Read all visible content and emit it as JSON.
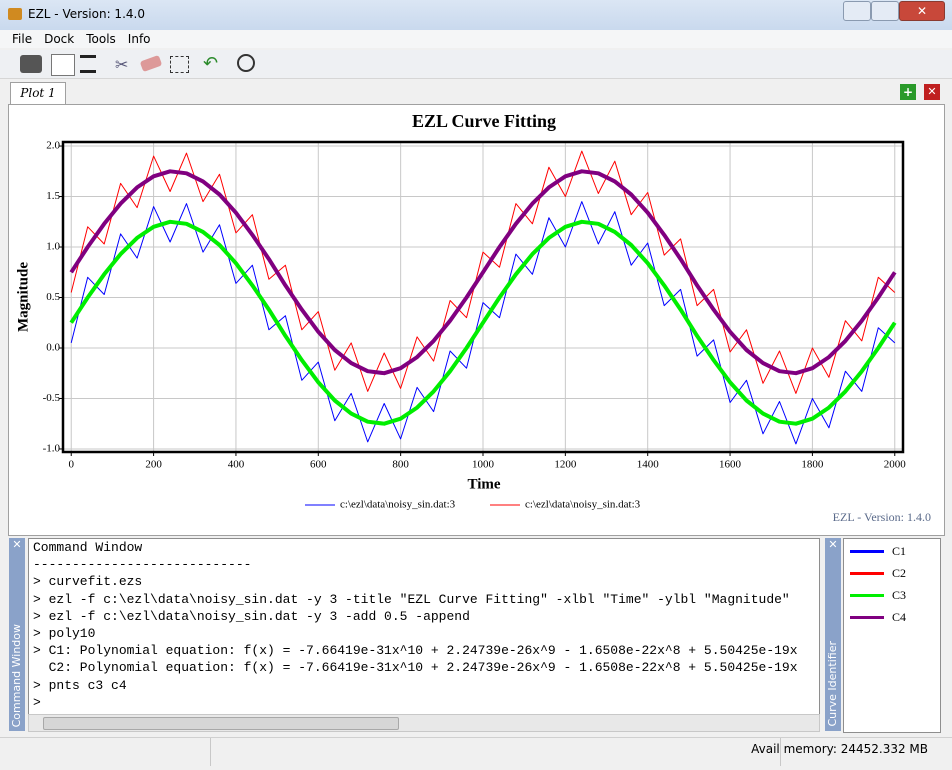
{
  "window": {
    "title": "EZL - Version: 1.4.0",
    "menu": [
      "File",
      "Dock",
      "Tools",
      "Info"
    ],
    "tab": "Plot 1",
    "watermark": "EZL - Version: 1.4.0",
    "command_window": {
      "label": "Command Window",
      "lines": [
        "Command Window",
        "----------------------------",
        "> curvefit.ezs",
        "> ezl -f c:\\ezl\\data\\noisy_sin.dat -y 3 -title \"EZL Curve Fitting\" -xlbl \"Time\" -ylbl \"Magnitude\"",
        "> ezl -f c:\\ezl\\data\\noisy_sin.dat -y 3 -add 0.5 -append",
        "> poly10",
        "> C1: Polynomial equation: f(x) = -7.66419e-31x^10 + 2.24739e-26x^9 - 1.6508e-22x^8 + 5.50425e-19x",
        "  C2: Polynomial equation: f(x) = -7.66419e-31x^10 + 2.24739e-26x^9 - 1.6508e-22x^8 + 5.50425e-19x",
        "> pnts c3 c4",
        ">"
      ]
    },
    "curve_identifier": {
      "label": "Curve Identifier"
    },
    "status": "Avail memory: 24452.332 MB"
  },
  "chart_data": {
    "type": "line",
    "title": "EZL Curve Fitting",
    "x_label": "Time",
    "y_label": "Magnitude",
    "x": [
      0,
      40,
      80,
      120,
      160,
      200,
      240,
      280,
      320,
      360,
      400,
      440,
      480,
      520,
      560,
      600,
      640,
      680,
      720,
      760,
      800,
      840,
      880,
      920,
      960,
      1000,
      1040,
      1080,
      1120,
      1160,
      1200,
      1240,
      1280,
      1320,
      1360,
      1400,
      1440,
      1480,
      1520,
      1560,
      1600,
      1640,
      1680,
      1720,
      1760,
      1800,
      1840,
      1880,
      1920,
      1960,
      2000
    ],
    "xlim": [
      -20,
      2020
    ],
    "xticks": [
      0,
      200,
      400,
      600,
      800,
      1000,
      1200,
      1400,
      1600,
      1800,
      2000
    ],
    "ylim": [
      -1.03,
      2.04
    ],
    "yticks": [
      {
        "value": -1,
        "label": "-1.0"
      },
      -0.5,
      {
        "value": 0,
        "label": "0.0"
      },
      0.5,
      {
        "value": 1,
        "label": "1.0"
      },
      1.5,
      {
        "value": 2,
        "label": "2.0"
      }
    ],
    "grid": true,
    "series": [
      {
        "id": "C1",
        "name": "c:\\ezl\\data\\noisy_sin.dat:3",
        "color": "#0000ff",
        "width": 1,
        "values": [
          0.05,
          0.7,
          0.53,
          1.13,
          0.89,
          1.4,
          1.05,
          1.43,
          0.95,
          1.22,
          0.64,
          0.82,
          0.18,
          0.32,
          -0.32,
          -0.14,
          -0.72,
          -0.45,
          -0.93,
          -0.55,
          -0.9,
          -0.39,
          -0.63,
          -0.03,
          -0.2,
          0.45,
          0.3,
          0.93,
          0.73,
          1.29,
          1.0,
          1.45,
          1.03,
          1.35,
          0.82,
          1.04,
          0.42,
          0.58,
          -0.08,
          0.08,
          -0.54,
          -0.32,
          -0.85,
          -0.53,
          -0.95,
          -0.5,
          -0.79,
          -0.23,
          -0.43,
          0.2,
          0.05
        ]
      },
      {
        "id": "C2",
        "name": "c:\\ezl\\data\\noisy_sin.dat:3",
        "color": "#ff0000",
        "width": 1,
        "values": [
          0.55,
          1.2,
          1.03,
          1.63,
          1.39,
          1.9,
          1.55,
          1.93,
          1.45,
          1.72,
          1.14,
          1.32,
          0.68,
          0.82,
          0.18,
          0.36,
          -0.22,
          0.05,
          -0.43,
          -0.05,
          -0.4,
          0.11,
          -0.13,
          0.47,
          0.3,
          0.95,
          0.8,
          1.43,
          1.23,
          1.79,
          1.5,
          1.95,
          1.53,
          1.85,
          1.32,
          1.54,
          0.92,
          1.08,
          0.42,
          0.58,
          -0.04,
          0.18,
          -0.35,
          -0.03,
          -0.45,
          0.0,
          -0.29,
          0.27,
          0.07,
          0.7,
          0.55
        ]
      },
      {
        "id": "C3",
        "color": "#00ee00",
        "width": 4,
        "values": [
          0.25,
          0.5,
          0.73,
          0.93,
          1.09,
          1.2,
          1.25,
          1.23,
          1.15,
          1.02,
          0.84,
          0.62,
          0.38,
          0.12,
          -0.12,
          -0.34,
          -0.52,
          -0.65,
          -0.73,
          -0.75,
          -0.7,
          -0.59,
          -0.43,
          -0.23,
          0.0,
          0.25,
          0.5,
          0.73,
          0.93,
          1.09,
          1.2,
          1.25,
          1.23,
          1.15,
          1.02,
          0.84,
          0.62,
          0.38,
          0.12,
          -0.12,
          -0.34,
          -0.52,
          -0.65,
          -0.73,
          -0.75,
          -0.7,
          -0.59,
          -0.43,
          -0.23,
          0.0,
          0.25
        ]
      },
      {
        "id": "C4",
        "color": "#800080",
        "width": 4,
        "values": [
          0.75,
          1.0,
          1.23,
          1.43,
          1.59,
          1.7,
          1.75,
          1.73,
          1.65,
          1.52,
          1.34,
          1.12,
          0.88,
          0.62,
          0.38,
          0.16,
          -0.02,
          -0.15,
          -0.23,
          -0.25,
          -0.2,
          -0.09,
          0.07,
          0.27,
          0.5,
          0.75,
          1.0,
          1.23,
          1.43,
          1.59,
          1.7,
          1.75,
          1.73,
          1.65,
          1.52,
          1.34,
          1.12,
          0.88,
          0.62,
          0.38,
          0.16,
          -0.02,
          -0.15,
          -0.23,
          -0.25,
          -0.2,
          -0.09,
          0.07,
          0.27,
          0.5,
          0.75
        ]
      }
    ]
  }
}
